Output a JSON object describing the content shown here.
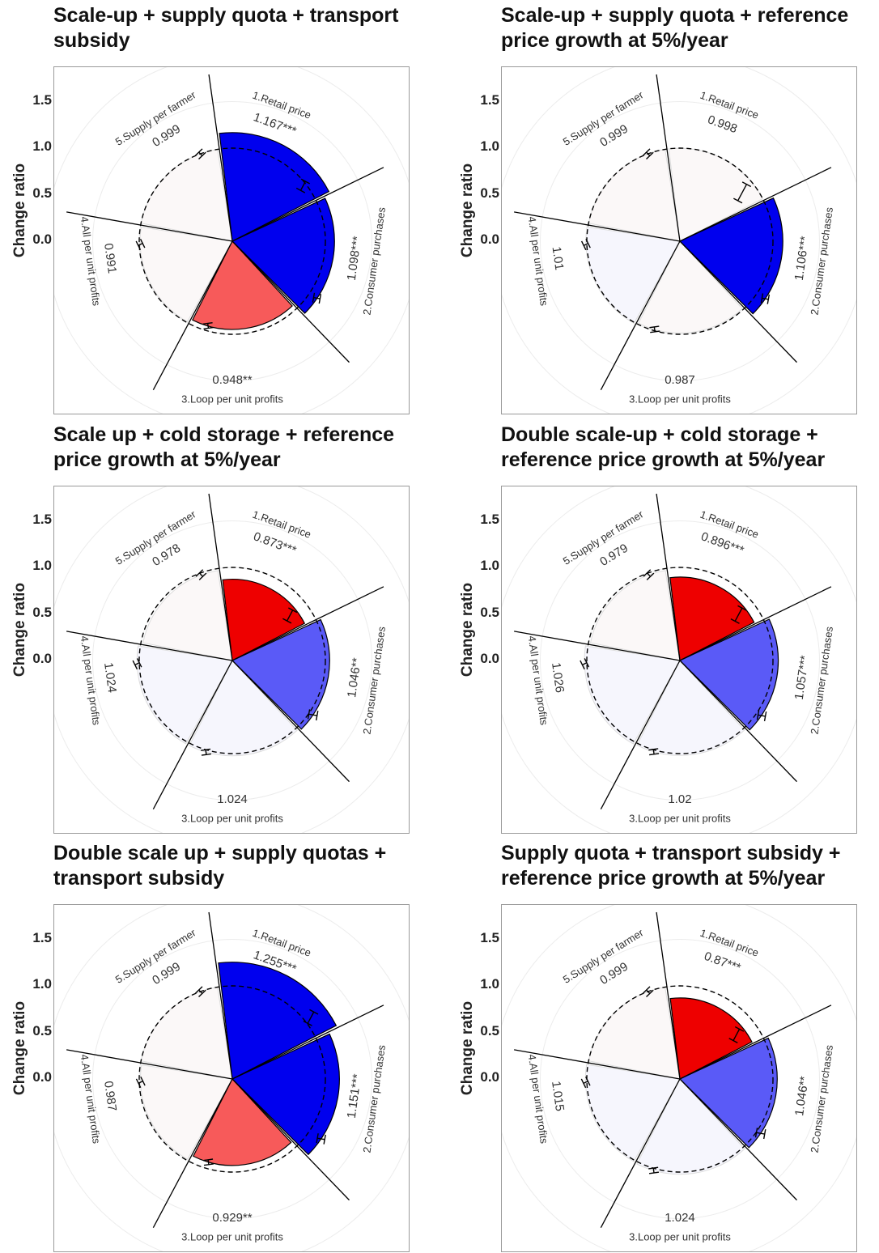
{
  "y_axis": {
    "label": "Change ratio",
    "ticks": [
      "1.5",
      "1.0",
      "0.5",
      "0.0"
    ]
  },
  "colors": {
    "strong_blue": "#0000ee",
    "mid_blue": "#5a5af7",
    "strong_red": "#ee0000",
    "mid_red": "#f75a5a",
    "faint_warm": "#fbf8f8",
    "faint_cool": "#f6f6fd"
  },
  "chart_data": [
    {
      "type": "polar-bar",
      "title": "Scale-up + supply quota + transport subsidy",
      "ylabel": "Change ratio",
      "ylim": [
        0,
        1.5
      ],
      "reference_line": 1.0,
      "categories": [
        "1.Retail price",
        "2.Consumer purchases",
        "3.Loop per unit profits",
        "4.All per unit profits",
        "5.Supply per farmer"
      ],
      "values": [
        1.167,
        1.098,
        0.948,
        0.991,
        0.999
      ],
      "value_labels": [
        "1.167***",
        "1.098***",
        "0.948**",
        "0.991",
        "0.999"
      ],
      "error_bars": [
        [
          0.91,
          1.02
        ],
        [
          1.06,
          1.13
        ],
        [
          0.93,
          0.96
        ],
        [
          0.975,
          1.0
        ],
        [
          0.99,
          1.005
        ]
      ],
      "colors": [
        "#0000ee",
        "#0000ee",
        "#f75a5a",
        "#fbf8f8",
        "#fbf8f8"
      ]
    },
    {
      "type": "polar-bar",
      "title": "Scale-up + supply quota + reference price growth at 5%/year",
      "ylabel": "Change ratio",
      "ylim": [
        0,
        1.5
      ],
      "reference_line": 1.0,
      "categories": [
        "1.Retail price",
        "2.Consumer purchases",
        "3.Loop per unit profits",
        "4.All per unit profits",
        "5.Supply per farmer"
      ],
      "values": [
        0.998,
        1.106,
        0.987,
        1.01,
        0.999
      ],
      "value_labels": [
        "0.998",
        "1.106***",
        "0.987",
        "1.01",
        "0.999"
      ],
      "error_bars": [
        [
          0.75,
          0.95
        ],
        [
          1.07,
          1.14
        ],
        [
          0.97,
          1.0
        ],
        [
          0.99,
          1.03
        ],
        [
          0.99,
          1.005
        ]
      ],
      "colors": [
        "#fbf8f8",
        "#0000ee",
        "#fbf8f8",
        "#f6f6fd",
        "#fbf8f8"
      ]
    },
    {
      "type": "polar-bar",
      "title": "Scale up + cold storage + reference price growth at 5%/year",
      "ylabel": "Change ratio",
      "ylim": [
        0,
        1.5
      ],
      "reference_line": 1.0,
      "categories": [
        "1.Retail price",
        "2.Consumer purchases",
        "3.Loop per unit profits",
        "4.All per unit profits",
        "5.Supply per farmer"
      ],
      "values": [
        0.873,
        1.046,
        1.024,
        1.024,
        0.978
      ],
      "value_labels": [
        "0.873***",
        "1.046**",
        "1.024",
        "1.024",
        "0.978"
      ],
      "error_bars": [
        [
          0.72,
          0.85
        ],
        [
          1.0,
          1.09
        ],
        [
          1.01,
          1.04
        ],
        [
          1.0,
          1.045
        ],
        [
          0.96,
          1.0
        ]
      ],
      "colors": [
        "#ee0000",
        "#5a5af7",
        "#f6f6fd",
        "#f6f6fd",
        "#fbf8f8"
      ]
    },
    {
      "type": "polar-bar",
      "title": "Double scale-up + cold storage + reference price growth at 5%/year",
      "ylabel": "Change ratio",
      "ylim": [
        0,
        1.5
      ],
      "reference_line": 1.0,
      "categories": [
        "1.Retail price",
        "2.Consumer purchases",
        "3.Loop per unit profits",
        "4.All per unit profits",
        "5.Supply per farmer"
      ],
      "values": [
        0.896,
        1.057,
        1.02,
        1.026,
        0.979
      ],
      "value_labels": [
        "0.896***",
        "1.057***",
        "1.02",
        "1.026",
        "0.979"
      ],
      "error_bars": [
        [
          0.72,
          0.88
        ],
        [
          1.02,
          1.1
        ],
        [
          1.005,
          1.035
        ],
        [
          1.0,
          1.05
        ],
        [
          0.96,
          1.0
        ]
      ],
      "colors": [
        "#ee0000",
        "#5a5af7",
        "#f6f6fd",
        "#f6f6fd",
        "#fbf8f8"
      ]
    },
    {
      "type": "polar-bar",
      "title": "Double scale up + supply quotas + transport subsidy",
      "ylabel": "Change ratio",
      "ylim": [
        0,
        1.5
      ],
      "reference_line": 1.0,
      "categories": [
        "1.Retail price",
        "2.Consumer purchases",
        "3.Loop per unit profits",
        "4.All per unit profits",
        "5.Supply per farmer"
      ],
      "values": [
        1.255,
        1.151,
        0.929,
        0.987,
        0.999
      ],
      "value_labels": [
        "1.255***",
        "1.151***",
        "0.929**",
        "0.987",
        "0.999"
      ],
      "error_bars": [
        [
          1.0,
          1.14
        ],
        [
          1.11,
          1.19
        ],
        [
          0.91,
          0.95
        ],
        [
          0.97,
          1.0
        ],
        [
          0.99,
          1.005
        ]
      ],
      "colors": [
        "#0000ee",
        "#0000ee",
        "#f75a5a",
        "#fbf8f8",
        "#fbf8f8"
      ]
    },
    {
      "type": "polar-bar",
      "title": "Supply quota + transport subsidy + reference price growth at 5%/year",
      "ylabel": "Change ratio",
      "ylim": [
        0,
        1.5
      ],
      "reference_line": 1.0,
      "categories": [
        "1.Retail price",
        "2.Consumer purchases",
        "3.Loop per unit profits",
        "4.All per unit profits",
        "5.Supply per farmer"
      ],
      "values": [
        0.87,
        1.046,
        1.024,
        1.015,
        0.999
      ],
      "value_labels": [
        "0.87***",
        "1.046**",
        "1.024",
        "1.015",
        "0.999"
      ],
      "error_bars": [
        [
          0.7,
          0.84
        ],
        [
          1.0,
          1.09
        ],
        [
          1.0,
          1.045
        ],
        [
          0.99,
          1.035
        ],
        [
          0.99,
          1.005
        ]
      ],
      "colors": [
        "#ee0000",
        "#5a5af7",
        "#f6f6fd",
        "#f6f6fd",
        "#fbf8f8"
      ]
    }
  ]
}
